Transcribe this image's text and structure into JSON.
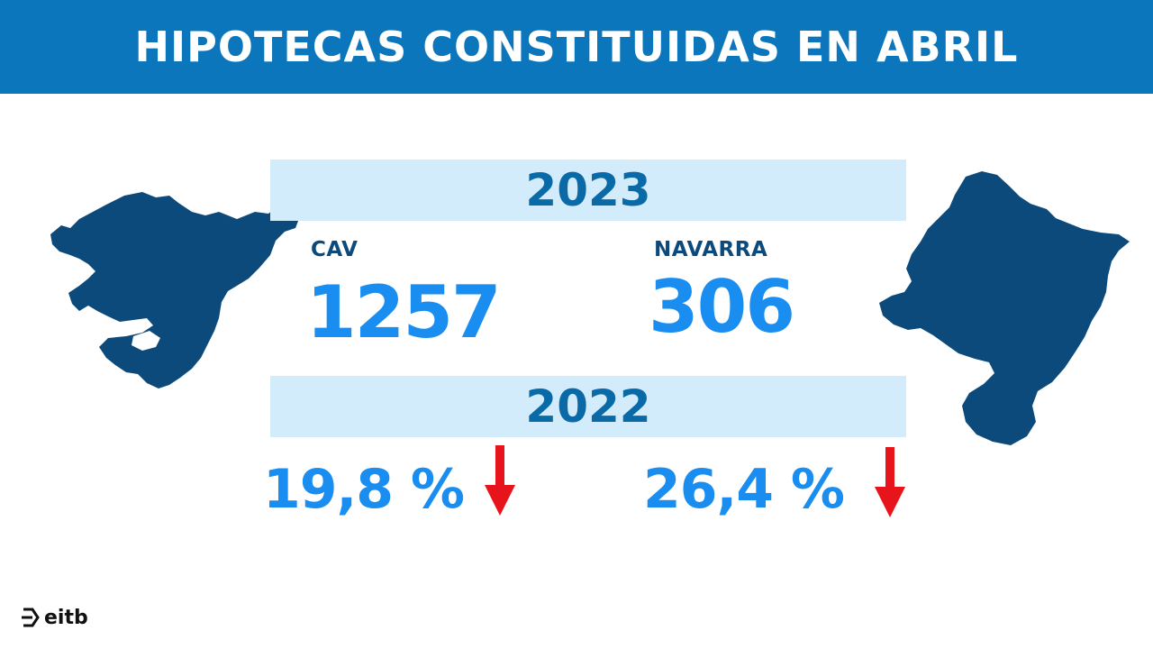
{
  "header": {
    "title": "HIPOTECAS CONSTITUIDAS EN ABRIL"
  },
  "current_year": {
    "label": "2023",
    "regions": [
      {
        "name": "CAV",
        "value": "1257"
      },
      {
        "name": "NAVARRA",
        "value": "306"
      }
    ]
  },
  "comparison_year": {
    "label": "2022",
    "changes": [
      {
        "value": "19,8 %",
        "direction": "down"
      },
      {
        "value": "26,4 %",
        "direction": "down"
      }
    ]
  },
  "colors": {
    "header": "#0b76bb",
    "band": "#d3ecfb",
    "map": "#0d4a7c",
    "number": "#1a8ef0",
    "arrow": "#e8141b"
  },
  "logo": {
    "text": "eitb"
  }
}
